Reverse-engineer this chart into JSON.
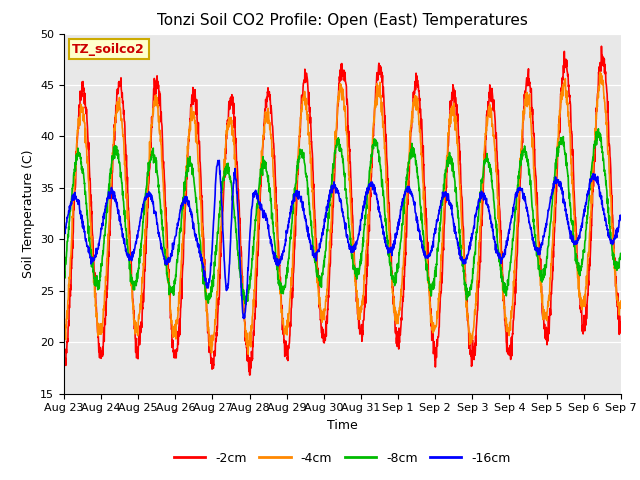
{
  "title": "Tonzi Soil CO2 Profile: Open (East) Temperatures",
  "xlabel": "Time",
  "ylabel": "Soil Temperature (C)",
  "ylim": [
    15,
    50
  ],
  "yticks": [
    15,
    20,
    25,
    30,
    35,
    40,
    45,
    50
  ],
  "legend_label": "TZ_soilco2",
  "series_labels": [
    "-2cm",
    "-4cm",
    "-8cm",
    "-16cm"
  ],
  "series_colors": [
    "#ff0000",
    "#ff8800",
    "#00bb00",
    "#0000ff"
  ],
  "background_color": "#e8e8e8",
  "title_fontsize": 11,
  "axis_fontsize": 9,
  "tick_fontsize": 8,
  "legend_fontsize": 9,
  "line_width": 1.2,
  "xtick_labels": [
    "Aug 23",
    "Aug 24",
    "Aug 25",
    "Aug 26",
    "Aug 27",
    "Aug 28",
    "Aug 29",
    "Aug 30",
    "Aug 31",
    "Sep 1",
    "Sep 2",
    "Sep 3",
    "Sep 4",
    "Sep 5",
    "Sep 6",
    "Sep 7"
  ]
}
